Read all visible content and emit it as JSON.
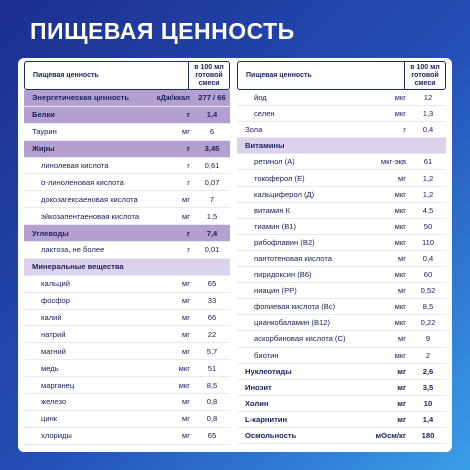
{
  "title": "ПИЩЕВАЯ ЦЕННОСТЬ",
  "left": {
    "header": [
      "Пищевая ценность",
      "в 100 мл готовой смеси"
    ],
    "rows": [
      [
        "Энергетическая ценность",
        "кДж/ккал",
        "277 / 66"
      ],
      [
        "Белки",
        "г",
        "1,4"
      ],
      [
        "Таурин",
        "мг",
        "6"
      ],
      [
        "Жиры",
        "г",
        "3,45"
      ],
      [
        "линолевая кислота",
        "г",
        "0,61"
      ],
      [
        "α-линоленовая кислота",
        "г",
        "0,07"
      ],
      [
        "докозагексаеновая кислота",
        "мг",
        "7"
      ],
      [
        "эйкозапентаеновая кислота",
        "мг",
        "1,5"
      ],
      [
        "Углеводы",
        "г",
        "7,4"
      ],
      [
        "лактоза, не более",
        "г",
        "0,01"
      ],
      [
        "Минеральные вещества"
      ],
      [
        "кальций",
        "мг",
        "65"
      ],
      [
        "фосфор",
        "мг",
        "33"
      ],
      [
        "калий",
        "мг",
        "66"
      ],
      [
        "натрий",
        "мг",
        "22"
      ],
      [
        "магний",
        "мг",
        "5,7"
      ],
      [
        "медь",
        "мкг",
        "51"
      ],
      [
        "марганец",
        "мкг",
        "8,5"
      ],
      [
        "железо",
        "мг",
        "0,8"
      ],
      [
        "цинк",
        "мг",
        "0,8"
      ],
      [
        "хлориды",
        "мг",
        "65"
      ]
    ]
  },
  "right": {
    "header": [
      "Пищевая ценность",
      "в 100 мл готовой смеси"
    ],
    "rows": [
      [
        "йод",
        "мкг",
        "12"
      ],
      [
        "селен",
        "мкг",
        "1,3"
      ],
      [
        "Зола",
        "г",
        "0,4"
      ],
      [
        "Витамины"
      ],
      [
        "ретинол (А)",
        "мкг-экв",
        "61"
      ],
      [
        "токоферол (Е)",
        "мг",
        "1,2"
      ],
      [
        "кальциферол (Д)",
        "мкг",
        "1,2"
      ],
      [
        "витамин К",
        "мкг",
        "4,5"
      ],
      [
        "тиамин (В1)",
        "мкг",
        "50"
      ],
      [
        "рибофлавин (В2)",
        "мкг",
        "110"
      ],
      [
        "пантотеновая кислота",
        "мг",
        "0,4"
      ],
      [
        "пиридоксин (В6)",
        "мкг",
        "60"
      ],
      [
        "ниацин (РР)",
        "мг",
        "0,52"
      ],
      [
        "фолиевая кислота (Вс)",
        "мкг",
        "8,5"
      ],
      [
        "цианкобаламин (В12)",
        "мкг",
        "0,22"
      ],
      [
        "аскорбиновая кислота (С)",
        "мг",
        "9"
      ],
      [
        "биотин",
        "мкг",
        "2"
      ],
      [
        "Нуклеотиды",
        "мг",
        "2,6"
      ],
      [
        "Инозит",
        "мг",
        "3,5"
      ],
      [
        "Холин",
        "мг",
        "10"
      ],
      [
        "L-карнитин",
        "мг",
        "1,4"
      ],
      [
        "Осмольность",
        "мОсм/кг",
        "180"
      ]
    ]
  }
}
